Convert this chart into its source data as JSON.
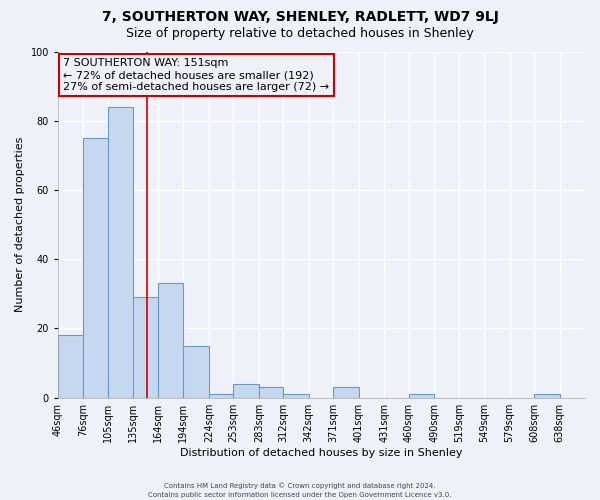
{
  "title": "7, SOUTHERTON WAY, SHENLEY, RADLETT, WD7 9LJ",
  "subtitle": "Size of property relative to detached houses in Shenley",
  "xlabel": "Distribution of detached houses by size in Shenley",
  "ylabel": "Number of detached properties",
  "bar_labels": [
    "46sqm",
    "76sqm",
    "105sqm",
    "135sqm",
    "164sqm",
    "194sqm",
    "224sqm",
    "253sqm",
    "283sqm",
    "312sqm",
    "342sqm",
    "371sqm",
    "401sqm",
    "431sqm",
    "460sqm",
    "490sqm",
    "519sqm",
    "549sqm",
    "579sqm",
    "608sqm",
    "638sqm"
  ],
  "bar_values": [
    18,
    75,
    84,
    29,
    33,
    15,
    1,
    4,
    3,
    1,
    0,
    3,
    0,
    0,
    1,
    0,
    0,
    0,
    0,
    1,
    0
  ],
  "bar_color": "#c5d8ef",
  "bar_edgecolor": "#6699cc",
  "bin_edges": [
    46,
    76,
    105,
    135,
    164,
    194,
    224,
    253,
    283,
    312,
    342,
    371,
    401,
    431,
    460,
    490,
    519,
    549,
    579,
    608,
    638,
    668
  ],
  "vline_color": "#cc0000",
  "vline_x": 151,
  "annotation_text_line1": "7 SOUTHERTON WAY: 151sqm",
  "annotation_text_line2": "← 72% of detached houses are smaller (192)",
  "annotation_text_line3": "27% of semi-detached houses are larger (72) →",
  "annotation_box_edgecolor": "#cc0000",
  "ylim": [
    0,
    100
  ],
  "yticks": [
    0,
    20,
    40,
    60,
    80,
    100
  ],
  "footer1": "Contains HM Land Registry data © Crown copyright and database right 2024.",
  "footer2": "Contains public sector information licensed under the Open Government Licence v3.0.",
  "bg_color": "#eef2f8",
  "plot_bg_color": "#eef2f8",
  "grid_color": "#ffffff",
  "title_fontsize": 10,
  "subtitle_fontsize": 9,
  "ylabel_fontsize": 8,
  "xlabel_fontsize": 8,
  "tick_fontsize": 7,
  "annot_fontsize": 8
}
